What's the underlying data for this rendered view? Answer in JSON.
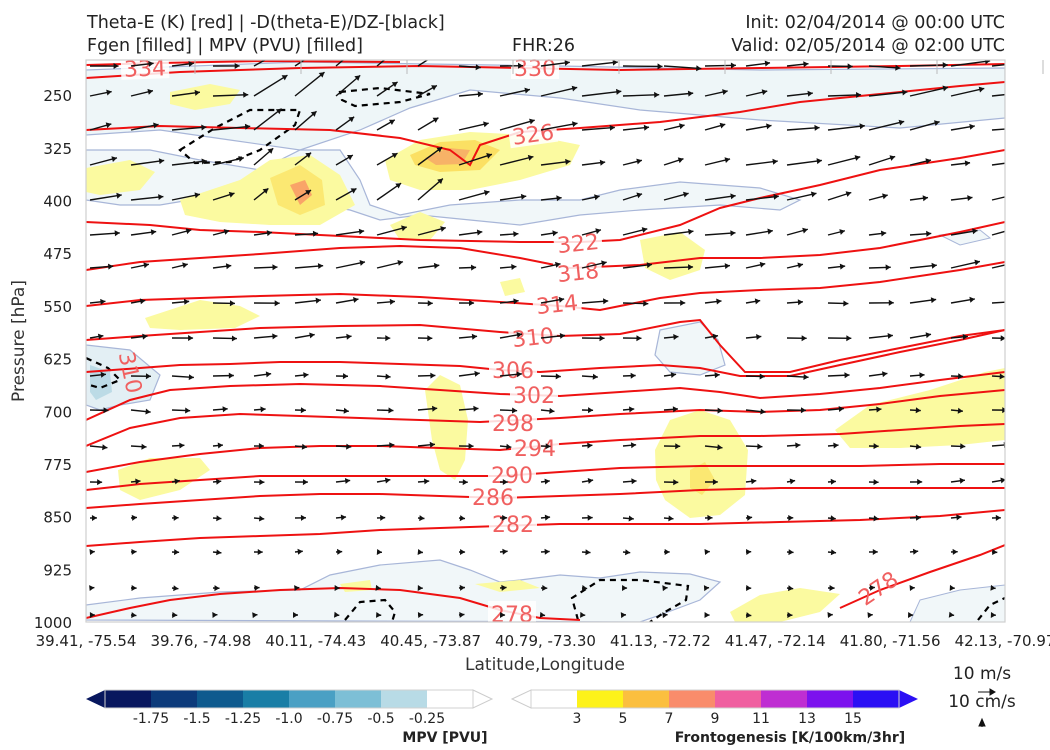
{
  "header": {
    "left_line1": "Theta-E (K) [red] | -D(theta-E)/DZ-[black]",
    "left_line2": "Fgen [filled] | MPV (PVU) [filled]",
    "fhr": "FHR:26",
    "init": "Init: 02/04/2014 @ 00:00 UTC",
    "valid": "Valid: 02/05/2014 @ 02:00 UTC"
  },
  "colors": {
    "theta_e": "#ee1111",
    "theta_e_label": "#f06060",
    "ddz": "#000000",
    "wind_arrows": "#111111",
    "mpv_ramp": [
      "#08175e",
      "#0c3a7a",
      "#0e5a8e",
      "#197ea6",
      "#4aa0c4",
      "#7dbfd6",
      "#b8dbe6",
      "#ffffff"
    ],
    "fgen_ramp": [
      "#ffffff",
      "#fdf21a",
      "#fbbf3f",
      "#f98c6b",
      "#f05fa0",
      "#bf2ed2",
      "#7c12ee",
      "#2b10f4"
    ]
  },
  "chart_data": {
    "type": "cross-section contour",
    "ylabel": "Pressure [hPa]",
    "xlabel": "Latitude,Longitude",
    "y_ticks": [
      250,
      325,
      400,
      475,
      550,
      625,
      700,
      775,
      850,
      925,
      1000
    ],
    "ylim": [
      200,
      1000
    ],
    "x_ticks": [
      "39.41, -75.54",
      "39.76, -74.98",
      "40.11, -74.43",
      "40.45, -73.87",
      "40.79, -73.30",
      "41.13, -72.72",
      "41.47, -72.14",
      "41.80, -71.56",
      "42.13, -70.97"
    ],
    "theta_e_contours": [
      {
        "value": 334,
        "label": "334"
      },
      {
        "value": 330,
        "label": "330"
      },
      {
        "value": 326,
        "label": "326"
      },
      {
        "value": 322,
        "label": "322"
      },
      {
        "value": 318,
        "label": "318"
      },
      {
        "value": 314,
        "label": "314"
      },
      {
        "value": 310,
        "label": "310"
      },
      {
        "value": 306,
        "label": "306"
      },
      {
        "value": 302,
        "label": "302"
      },
      {
        "value": 298,
        "label": "298"
      },
      {
        "value": 294,
        "label": "294"
      },
      {
        "value": 290,
        "label": "290"
      },
      {
        "value": 286,
        "label": "286"
      },
      {
        "value": 282,
        "label": "282"
      },
      {
        "value": 278,
        "label": "278"
      }
    ],
    "left_contour_label": "310",
    "right_contour_label": "278"
  },
  "colorbars": {
    "mpv": {
      "title": "MPV [PVU]",
      "ticks": [
        "-1.75",
        "-1.5",
        "-1.25",
        "-1.0",
        "-0.75",
        "-0.5",
        "-0.25"
      ]
    },
    "fgen": {
      "title": "Frontogenesis [K/100km/3hr]",
      "ticks": [
        "3",
        "5",
        "7",
        "9",
        "11",
        "13",
        "15"
      ]
    }
  },
  "wind_key": {
    "horizontal": "10 m/s",
    "vertical": "10 cm/s"
  }
}
